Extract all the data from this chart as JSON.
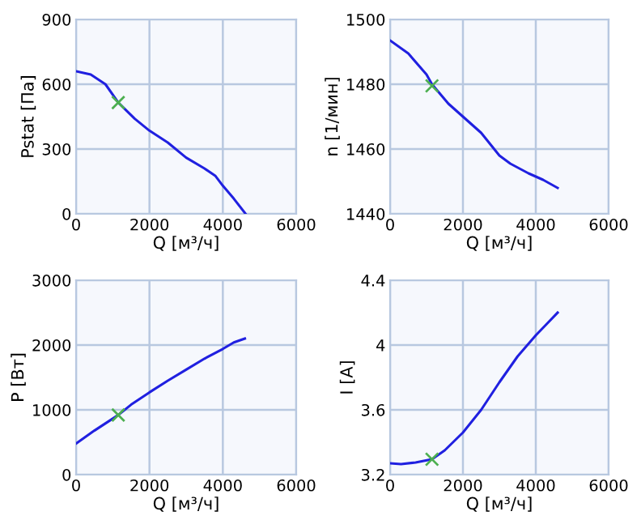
{
  "chart_data": [
    {
      "type": "line",
      "xlabel": "Q [м³/ч]",
      "ylabel": "Pstat [Па]",
      "xlim": [
        0,
        6000
      ],
      "xticks": [
        0,
        2000,
        4000,
        6000
      ],
      "ylim": [
        0,
        900
      ],
      "yticks": [
        0,
        300,
        600,
        900
      ],
      "grid": true,
      "series": [
        {
          "color": "#2020e0",
          "x": [
            0,
            400,
            800,
            1150,
            1600,
            2000,
            2500,
            3000,
            3500,
            3800,
            4000,
            4300,
            4620
          ],
          "values": [
            660,
            645,
            600,
            515,
            440,
            385,
            330,
            260,
            210,
            175,
            130,
            70,
            0
          ]
        },
        {
          "type": "scatter",
          "marker": "cross",
          "color": "#4caf50",
          "x": [
            1150
          ],
          "values": [
            515
          ]
        }
      ]
    },
    {
      "type": "line",
      "xlabel": "Q [м³/ч]",
      "ylabel": "n [1/мин]",
      "xlim": [
        0,
        6000
      ],
      "xticks": [
        0,
        2000,
        4000,
        6000
      ],
      "ylim": [
        1440,
        1500
      ],
      "yticks": [
        1440,
        1460,
        1480,
        1500
      ],
      "grid": true,
      "series": [
        {
          "color": "#2020e0",
          "x": [
            0,
            500,
            1000,
            1150,
            1600,
            2000,
            2500,
            3000,
            3300,
            3800,
            4200,
            4600
          ],
          "values": [
            1493.5,
            1489.5,
            1483,
            1480,
            1474,
            1470,
            1465,
            1458,
            1455.5,
            1452.5,
            1450.5,
            1448
          ]
        },
        {
          "type": "scatter",
          "marker": "cross",
          "color": "#4caf50",
          "x": [
            1150
          ],
          "values": [
            1479.5
          ]
        }
      ]
    },
    {
      "type": "line",
      "xlabel": "Q [м³/ч]",
      "ylabel": "P [Вт]",
      "xlim": [
        0,
        6000
      ],
      "xticks": [
        0,
        2000,
        4000,
        6000
      ],
      "ylim": [
        0,
        3000
      ],
      "yticks": [
        0,
        1000,
        2000,
        3000
      ],
      "grid": true,
      "series": [
        {
          "color": "#2020e0",
          "x": [
            0,
            500,
            1150,
            1500,
            2000,
            2500,
            3000,
            3500,
            4000,
            4300,
            4600
          ],
          "values": [
            480,
            680,
            920,
            1080,
            1270,
            1450,
            1620,
            1790,
            1940,
            2040,
            2100
          ]
        },
        {
          "type": "scatter",
          "marker": "cross",
          "color": "#4caf50",
          "x": [
            1150
          ],
          "values": [
            920
          ]
        }
      ]
    },
    {
      "type": "line",
      "xlabel": "Q [м³/ч]",
      "ylabel": "I [A]",
      "xlim": [
        0,
        6000
      ],
      "xticks": [
        0,
        2000,
        4000,
        6000
      ],
      "ylim": [
        3.2,
        4.4
      ],
      "yticks": [
        3.2,
        3.6,
        4,
        4.4
      ],
      "grid": true,
      "series": [
        {
          "color": "#2020e0",
          "x": [
            0,
            300,
            700,
            1150,
            1500,
            2000,
            2500,
            3000,
            3500,
            4000,
            4300,
            4600
          ],
          "values": [
            3.27,
            3.265,
            3.275,
            3.295,
            3.35,
            3.46,
            3.6,
            3.77,
            3.93,
            4.06,
            4.13,
            4.2
          ]
        },
        {
          "type": "scatter",
          "marker": "cross",
          "color": "#4caf50",
          "x": [
            1150
          ],
          "values": [
            3.295
          ]
        }
      ]
    }
  ]
}
